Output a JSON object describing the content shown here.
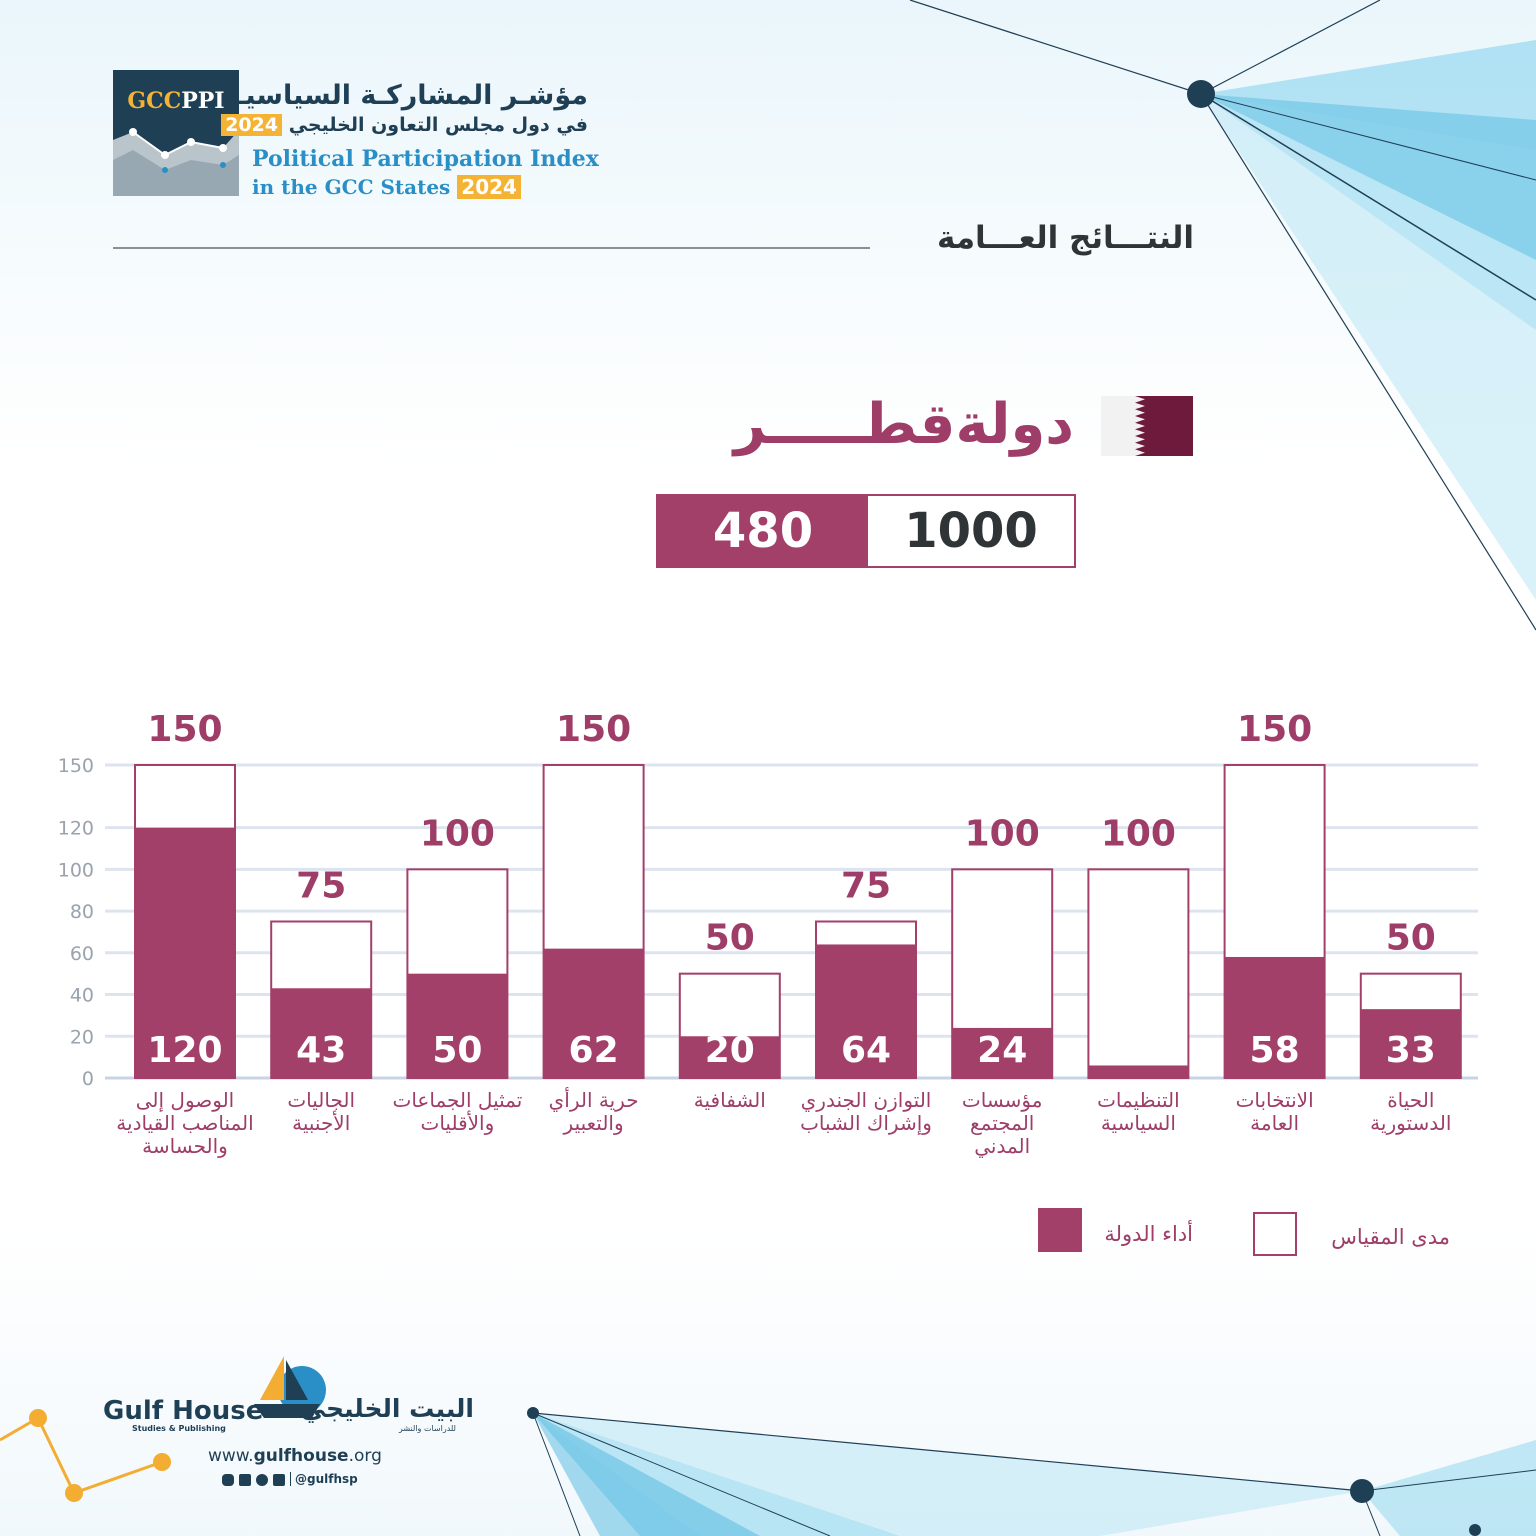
{
  "header": {
    "logo_code_a": "GCC",
    "logo_code_b": "PPI",
    "title_ar_line1": "مؤشـر المشاركـة السياسيـة",
    "title_ar_line2": "في دول مجلس التعاون الخليجي",
    "title_en_line1": "Political Participation Index",
    "title_en_line2": "in the GCC States",
    "year": "2024"
  },
  "section_title": "النتـــائج العـــامة",
  "country": {
    "name": "دولةقطـــــر",
    "flag_colors": [
      "#ffffff",
      "#6e1a3c"
    ]
  },
  "score": {
    "achieved": "480",
    "max": "1000"
  },
  "chart_data": {
    "type": "bar",
    "categories": [
      "الوصول إلى المناصب القيادية والحساسة",
      "الجاليات الأجنبية",
      "تمثيل الجماعات والأقليات",
      "حرية الرأي والتعبير",
      "الشفافية",
      "التوازن الجندري وإشراك الشباب",
      "مؤسسات المجتمع المدني",
      "التنظيمات السياسية",
      "الانتخابات العامة",
      "الحياة الدستورية"
    ],
    "category_lines": [
      [
        "الوصول إلى",
        "المناصب القيادية",
        "والحساسة"
      ],
      [
        "الجاليات",
        "الأجنبية"
      ],
      [
        "تمثيل الجماعات",
        "والأقليات"
      ],
      [
        "حرية الرأي",
        "والتعبير"
      ],
      [
        "الشفافية"
      ],
      [
        "التوازن الجندري",
        "وإشراك الشباب"
      ],
      [
        "مؤسسات",
        "المجتمع",
        "المدني"
      ],
      [
        "التنظيمات",
        "السياسية"
      ],
      [
        "الانتخابات",
        "العامة"
      ],
      [
        "الحياة",
        "الدستورية"
      ]
    ],
    "series": [
      {
        "name": "أداء الدولة",
        "values": [
          120,
          43,
          50,
          62,
          20,
          64,
          24,
          6,
          58,
          33
        ],
        "color": "#a3406a"
      },
      {
        "name": "مدى المقياس",
        "values": [
          150,
          75,
          100,
          150,
          50,
          75,
          100,
          100,
          150,
          50
        ],
        "color": "#ffffff"
      }
    ],
    "yticks": [
      0,
      20,
      40,
      60,
      80,
      100,
      120,
      150
    ],
    "ylim": [
      0,
      150
    ],
    "grid": true,
    "legend_position": "bottom-right"
  },
  "footer": {
    "brand_en": "Gulf House",
    "brand_en_sub": "Studies & Publishing",
    "brand_ar": "البيت الخليجي",
    "brand_ar_sub": "للدراسات والنشر",
    "url_prefix": "www.",
    "url_bold": "gulfhouse",
    "url_suffix": ".org",
    "handle": "@gulfhsp"
  }
}
